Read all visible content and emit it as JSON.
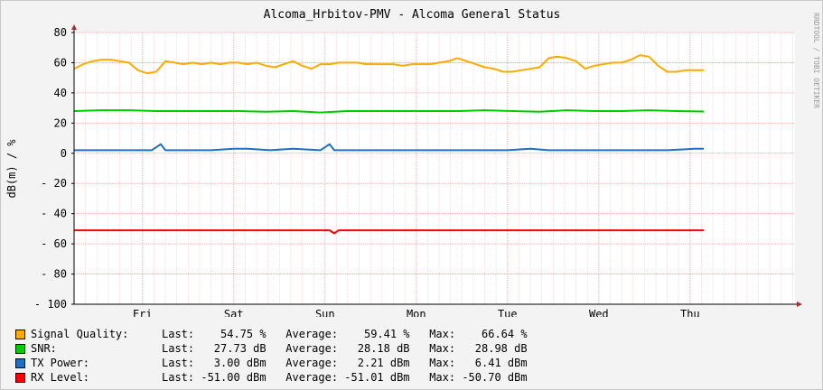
{
  "chart_data": {
    "type": "line",
    "title": "Alcoma_Hrbitov-PMV - Alcoma General Status",
    "ylabel": "dB(m) / %",
    "watermark": "RRDTOOL / TOBI OETIKER",
    "ylim": [
      -100,
      80
    ],
    "yticks": [
      80,
      60,
      40,
      20,
      0,
      -20,
      -40,
      -60,
      -80,
      -100
    ],
    "ytick_labels": [
      "80",
      "60",
      "40",
      "20",
      "0",
      "- 20",
      "- 40",
      "- 60",
      "- 80",
      "- 100"
    ],
    "xlim": [
      0,
      7.9
    ],
    "x_tick_values": [
      0.75,
      1.75,
      2.75,
      3.75,
      4.75,
      5.75,
      6.75
    ],
    "x_tick_labels": [
      "Fri",
      "Sat",
      "Sun",
      "Mon",
      "Tue",
      "Wed",
      "Thu"
    ],
    "grid": true,
    "legend_placement": "bottom",
    "series": [
      {
        "name": "Signal Quality:",
        "color": "#FFAA00",
        "x": [
          0,
          0.1,
          0.2,
          0.3,
          0.4,
          0.5,
          0.6,
          0.7,
          0.8,
          0.9,
          1.0,
          1.1,
          1.2,
          1.3,
          1.4,
          1.5,
          1.6,
          1.7,
          1.8,
          1.9,
          2.0,
          2.1,
          2.2,
          2.3,
          2.4,
          2.5,
          2.6,
          2.7,
          2.8,
          2.9,
          3.0,
          3.1,
          3.2,
          3.3,
          3.4,
          3.5,
          3.6,
          3.7,
          3.8,
          3.9,
          4.0,
          4.1,
          4.2,
          4.3,
          4.4,
          4.5,
          4.6,
          4.7,
          4.8,
          4.9,
          5.0,
          5.1,
          5.2,
          5.3,
          5.4,
          5.5,
          5.6,
          5.7,
          5.8,
          5.9,
          6.0,
          6.1,
          6.2,
          6.3,
          6.4,
          6.5,
          6.6,
          6.7,
          6.8,
          6.9
        ],
        "y": [
          56,
          59,
          61,
          62,
          62,
          61,
          60,
          55,
          53,
          54,
          61,
          60,
          59,
          60,
          59,
          60,
          59,
          60,
          60,
          59,
          60,
          58,
          57,
          59,
          61,
          58,
          56,
          59,
          59,
          60,
          60,
          60,
          59,
          59,
          59,
          59,
          58,
          59,
          59,
          59,
          60,
          61,
          63,
          61,
          59,
          57,
          56,
          54,
          54,
          55,
          56,
          57,
          63,
          64,
          63,
          61,
          56,
          58,
          59,
          60,
          60,
          62,
          65,
          64,
          58,
          54,
          54,
          55,
          55,
          55
        ],
        "last": "54.75 %",
        "average": "59.41 %",
        "max": "66.64 %"
      },
      {
        "name": "SNR:",
        "color": "#00CC00",
        "x": [
          0,
          0.3,
          0.6,
          0.9,
          1.2,
          1.5,
          1.8,
          2.1,
          2.4,
          2.7,
          3.0,
          3.3,
          3.6,
          3.9,
          4.2,
          4.5,
          4.8,
          5.1,
          5.4,
          5.7,
          6.0,
          6.3,
          6.6,
          6.9
        ],
        "y": [
          28,
          28.5,
          28.5,
          28,
          28,
          28,
          28,
          27.5,
          28,
          27,
          28,
          28,
          28,
          28,
          28,
          28.5,
          28,
          27.5,
          28.5,
          28,
          28,
          28.5,
          28,
          27.7
        ],
        "last": "27.73 dB",
        "average": "28.18 dB",
        "max": "28.98 dB"
      },
      {
        "name": "TX Power:",
        "color": "#1F6FC5",
        "x": [
          0,
          0.5,
          0.85,
          0.95,
          1.0,
          1.1,
          1.5,
          1.75,
          1.9,
          2.15,
          2.4,
          2.7,
          2.8,
          2.85,
          3.2,
          3.6,
          4.0,
          4.4,
          4.75,
          5.0,
          5.2,
          5.5,
          5.9,
          6.2,
          6.5,
          6.8,
          6.9
        ],
        "y": [
          2,
          2,
          2,
          6,
          2,
          2,
          2,
          3,
          3,
          2,
          3,
          2,
          6,
          2,
          2,
          2,
          2,
          2,
          2,
          3,
          2,
          2,
          2,
          2,
          2,
          3,
          3
        ],
        "last": "3.00 dBm",
        "average": "2.21 dBm",
        "max": "6.41 dBm"
      },
      {
        "name": "RX Level:",
        "color": "#FF0000",
        "x": [
          0,
          0.9,
          1.5,
          2.0,
          2.8,
          2.85,
          2.9,
          3.5,
          4.5,
          5.0,
          5.5,
          6.0,
          6.5,
          6.9
        ],
        "y": [
          -51,
          -51,
          -51,
          -51,
          -51,
          -53,
          -51,
          -51,
          -51,
          -51,
          -51,
          -51,
          -51,
          -51
        ],
        "last": "-51.00 dBm",
        "average": "-51.01 dBm",
        "max": "-50.70 dBm"
      }
    ]
  },
  "legend_labels": {
    "last": "Last:",
    "average": "Average:",
    "max": "Max:"
  }
}
